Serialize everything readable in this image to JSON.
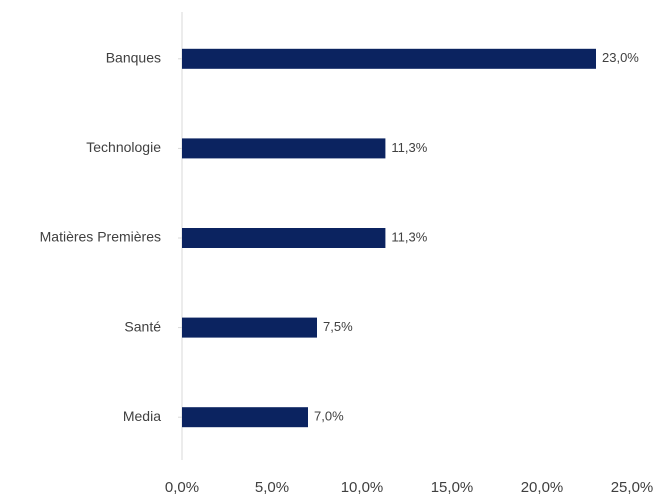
{
  "chart_data": {
    "type": "bar",
    "orientation": "horizontal",
    "categories": [
      "Banques",
      "Technologie",
      "Matières Premières",
      "Santé",
      "Media"
    ],
    "values": [
      23.0,
      11.3,
      11.3,
      7.5,
      7.0
    ],
    "value_labels": [
      "23,0%",
      "11,3%",
      "11,3%",
      "7,5%",
      "7,0%"
    ],
    "xlim": [
      0,
      25
    ],
    "x_ticks": [
      0,
      5,
      10,
      15,
      20,
      25
    ],
    "x_tick_labels": [
      "0,0%",
      "5,0%",
      "10,0%",
      "15,0%",
      "20,0%",
      "25,0%"
    ],
    "title": "",
    "xlabel": "",
    "ylabel": "",
    "grid": false,
    "legend": "none",
    "colors": {
      "bar": "#0b2360",
      "axis": "#d9d9d9",
      "text": "#404040"
    }
  }
}
